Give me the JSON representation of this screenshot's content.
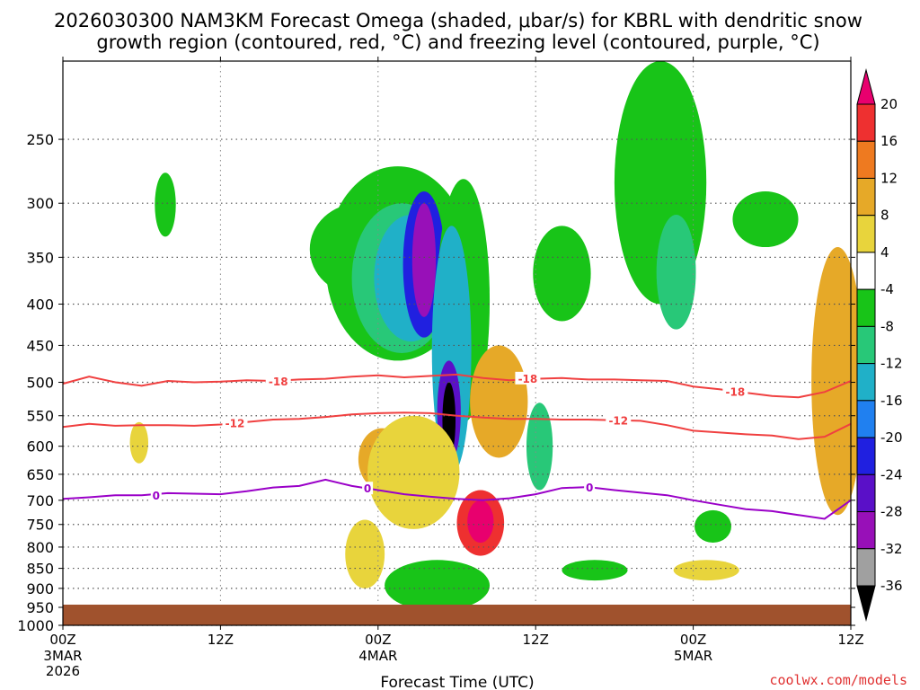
{
  "title": {
    "line1": "2026030300 NAM3KM Forecast Omega (shaded, μbar/s) for KBRL with dendritic snow",
    "line2": "growth region (contoured, red, °C) and freezing level (contoured, purple, °C)"
  },
  "credit": "coolwx.com/models",
  "chart_data": {
    "type": "heatmap",
    "title": "2026030300 NAM3KM Forecast Omega (shaded, μbar/s) for KBRL with dendritic snow growth region (contoured, red, °C) and freezing level (contoured, purple, °C)",
    "xlabel": "Forecast Time (UTC)",
    "ylabel": "",
    "x_range_hours": [
      0,
      60
    ],
    "y_scale": "log-pressure",
    "y_range_mb": [
      1000,
      200
    ],
    "y_ticks": [
      "250",
      "300",
      "350",
      "400",
      "450",
      "500",
      "550",
      "600",
      "650",
      "700",
      "750",
      "800",
      "850",
      "900",
      "950",
      "1000"
    ],
    "y_tick_values": [
      250,
      300,
      350,
      400,
      450,
      500,
      550,
      600,
      650,
      700,
      750,
      800,
      850,
      900,
      950,
      1000
    ],
    "x_ticks": [
      {
        "hour": 0,
        "label": "00Z",
        "date": "3MAR",
        "year": "2026"
      },
      {
        "hour": 12,
        "label": "12Z"
      },
      {
        "hour": 24,
        "label": "00Z",
        "date": "4MAR"
      },
      {
        "hour": 36,
        "label": "12Z"
      },
      {
        "hour": 48,
        "label": "00Z",
        "date": "5MAR"
      },
      {
        "hour": 60,
        "label": "12Z"
      }
    ],
    "grid": true,
    "colorbar": {
      "labels": [
        "20",
        "16",
        "12",
        "8",
        "4",
        "-4",
        "-8",
        "-12",
        "-16",
        "-20",
        "-24",
        "-28",
        "-32",
        "-36"
      ],
      "colors": [
        "#e8006e",
        "#ee3030",
        "#ee7a20",
        "#e6a928",
        "#e8d43c",
        "#ffffff",
        "#18c418",
        "#28c878",
        "#20b0c8",
        "#2080f0",
        "#2020e0",
        "#5a10c8",
        "#9810b8",
        "#a0a0a0",
        "#000000"
      ]
    },
    "ground_color": "#a0522d",
    "contours": [
      {
        "name": "-18",
        "color": "#f04040",
        "label_text": "-18",
        "points": [
          [
            0,
            502
          ],
          [
            2,
            492
          ],
          [
            4,
            500
          ],
          [
            6,
            505
          ],
          [
            8,
            498
          ],
          [
            10,
            500
          ],
          [
            12,
            499
          ],
          [
            14,
            497
          ],
          [
            16,
            498
          ],
          [
            18,
            496
          ],
          [
            20,
            495
          ],
          [
            22,
            492
          ],
          [
            24,
            490
          ],
          [
            26,
            493
          ],
          [
            28,
            491
          ],
          [
            30,
            489
          ],
          [
            32,
            494
          ],
          [
            34,
            497
          ],
          [
            36,
            495
          ],
          [
            38,
            494
          ],
          [
            40,
            496
          ],
          [
            42,
            496
          ],
          [
            44,
            497
          ],
          [
            46,
            498
          ],
          [
            48,
            506
          ],
          [
            50,
            510
          ],
          [
            52,
            515
          ],
          [
            54,
            520
          ],
          [
            56,
            522
          ],
          [
            58,
            514
          ],
          [
            60,
            498
          ]
        ],
        "label_points": [
          [
            16.4,
            498
          ],
          [
            35.4,
            494
          ],
          [
            51.2,
            513
          ]
        ]
      },
      {
        "name": "-12",
        "color": "#f04040",
        "label_text": "-12",
        "points": [
          [
            0,
            568
          ],
          [
            2,
            563
          ],
          [
            4,
            566
          ],
          [
            6,
            565
          ],
          [
            8,
            565
          ],
          [
            10,
            566
          ],
          [
            12,
            564
          ],
          [
            14,
            560
          ],
          [
            16,
            556
          ],
          [
            18,
            555
          ],
          [
            20,
            552
          ],
          [
            22,
            548
          ],
          [
            24,
            546
          ],
          [
            26,
            545
          ],
          [
            28,
            546
          ],
          [
            30,
            550
          ],
          [
            32,
            553
          ],
          [
            34,
            555
          ],
          [
            36,
            555
          ],
          [
            38,
            556
          ],
          [
            40,
            556
          ],
          [
            42,
            557
          ],
          [
            44,
            558
          ],
          [
            46,
            565
          ],
          [
            48,
            574
          ],
          [
            50,
            577
          ],
          [
            52,
            580
          ],
          [
            54,
            582
          ],
          [
            56,
            588
          ],
          [
            58,
            584
          ],
          [
            60,
            563
          ]
        ],
        "label_points": [
          [
            13.1,
            561
          ],
          [
            42.3,
            557
          ]
        ]
      },
      {
        "name": "0",
        "color": "#9a00c8",
        "label_text": "0",
        "points": [
          [
            0,
            697
          ],
          [
            2,
            694
          ],
          [
            4,
            690
          ],
          [
            6,
            690
          ],
          [
            8,
            686
          ],
          [
            10,
            687
          ],
          [
            12,
            688
          ],
          [
            14,
            682
          ],
          [
            16,
            675
          ],
          [
            18,
            672
          ],
          [
            20,
            660
          ],
          [
            22,
            672
          ],
          [
            24,
            680
          ],
          [
            26,
            688
          ],
          [
            28,
            693
          ],
          [
            30,
            697
          ],
          [
            32,
            700
          ],
          [
            34,
            696
          ],
          [
            36,
            688
          ],
          [
            38,
            676
          ],
          [
            40,
            674
          ],
          [
            42,
            680
          ],
          [
            44,
            685
          ],
          [
            46,
            690
          ],
          [
            48,
            700
          ],
          [
            50,
            709
          ],
          [
            52,
            718
          ],
          [
            54,
            722
          ],
          [
            56,
            730
          ],
          [
            58,
            738
          ],
          [
            60,
            700
          ]
        ],
        "label_points": [
          [
            7.1,
            690
          ],
          [
            23.2,
            676
          ],
          [
            40.1,
            674
          ]
        ]
      }
    ],
    "omega_features": [
      {
        "value": 4,
        "t": [
          5.8,
          0.7
        ],
        "p": [
          560,
          630
        ]
      },
      {
        "value": -4,
        "t": [
          7.8,
          0.8
        ],
        "p": [
          275,
          330
        ]
      },
      {
        "value": -8,
        "t": [
          22.6,
          3.8
        ],
        "p": [
          300,
          390
        ]
      },
      {
        "value": -8,
        "t": [
          25.5,
          5.5
        ],
        "p": [
          270,
          470
        ]
      },
      {
        "value": -12,
        "t": [
          25.8,
          3.8
        ],
        "p": [
          300,
          460
        ]
      },
      {
        "value": -16,
        "t": [
          26.5,
          2.8
        ],
        "p": [
          310,
          445
        ]
      },
      {
        "value": -24,
        "t": [
          27.5,
          1.6
        ],
        "p": [
          290,
          440
        ]
      },
      {
        "value": -32,
        "t": [
          27.5,
          0.9
        ],
        "p": [
          300,
          415
        ]
      },
      {
        "value": -8,
        "t": [
          30.5,
          2.0
        ],
        "p": [
          280,
          560
        ]
      },
      {
        "value": -16,
        "t": [
          29.6,
          1.5
        ],
        "p": [
          320,
          650
        ]
      },
      {
        "value": -28,
        "t": [
          29.4,
          0.9
        ],
        "p": [
          470,
          630
        ]
      },
      {
        "value": -36,
        "t": [
          29.4,
          0.5
        ],
        "p": [
          500,
          620
        ]
      },
      {
        "value": 8,
        "t": [
          24.3,
          1.8
        ],
        "p": [
          570,
          680
        ]
      },
      {
        "value": 12,
        "t": [
          26.5,
          1.6
        ],
        "p": [
          580,
          700
        ]
      },
      {
        "value": 4,
        "t": [
          26.7,
          3.5
        ],
        "p": [
          550,
          760
        ]
      },
      {
        "value": 8,
        "t": [
          33.2,
          2.2
        ],
        "p": [
          450,
          620
        ]
      },
      {
        "value": 16,
        "t": [
          31.8,
          1.8
        ],
        "p": [
          680,
          820
        ]
      },
      {
        "value": 20,
        "t": [
          31.8,
          1.0
        ],
        "p": [
          700,
          790
        ]
      },
      {
        "value": -12,
        "t": [
          36.3,
          1.0
        ],
        "p": [
          530,
          680
        ]
      },
      {
        "value": -8,
        "t": [
          28.5,
          4.0
        ],
        "p": [
          830,
          960
        ]
      },
      {
        "value": -8,
        "t": [
          45.5,
          3.5
        ],
        "p": [
          200,
          400
        ]
      },
      {
        "value": -12,
        "t": [
          46.7,
          1.5
        ],
        "p": [
          310,
          430
        ]
      },
      {
        "value": -8,
        "t": [
          38.0,
          2.2
        ],
        "p": [
          320,
          420
        ]
      },
      {
        "value": -8,
        "t": [
          53.5,
          2.5
        ],
        "p": [
          290,
          340
        ]
      },
      {
        "value": 8,
        "t": [
          59.0,
          2.0
        ],
        "p": [
          340,
          730
        ]
      },
      {
        "value": 4,
        "t": [
          49.0,
          2.5
        ],
        "p": [
          830,
          880
        ]
      },
      {
        "value": -8,
        "t": [
          49.5,
          1.4
        ],
        "p": [
          720,
          790
        ]
      },
      {
        "value": -8,
        "t": [
          40.5,
          2.5
        ],
        "p": [
          830,
          880
        ]
      },
      {
        "value": 4,
        "t": [
          23.0,
          1.5
        ],
        "p": [
          740,
          900
        ]
      }
    ]
  }
}
